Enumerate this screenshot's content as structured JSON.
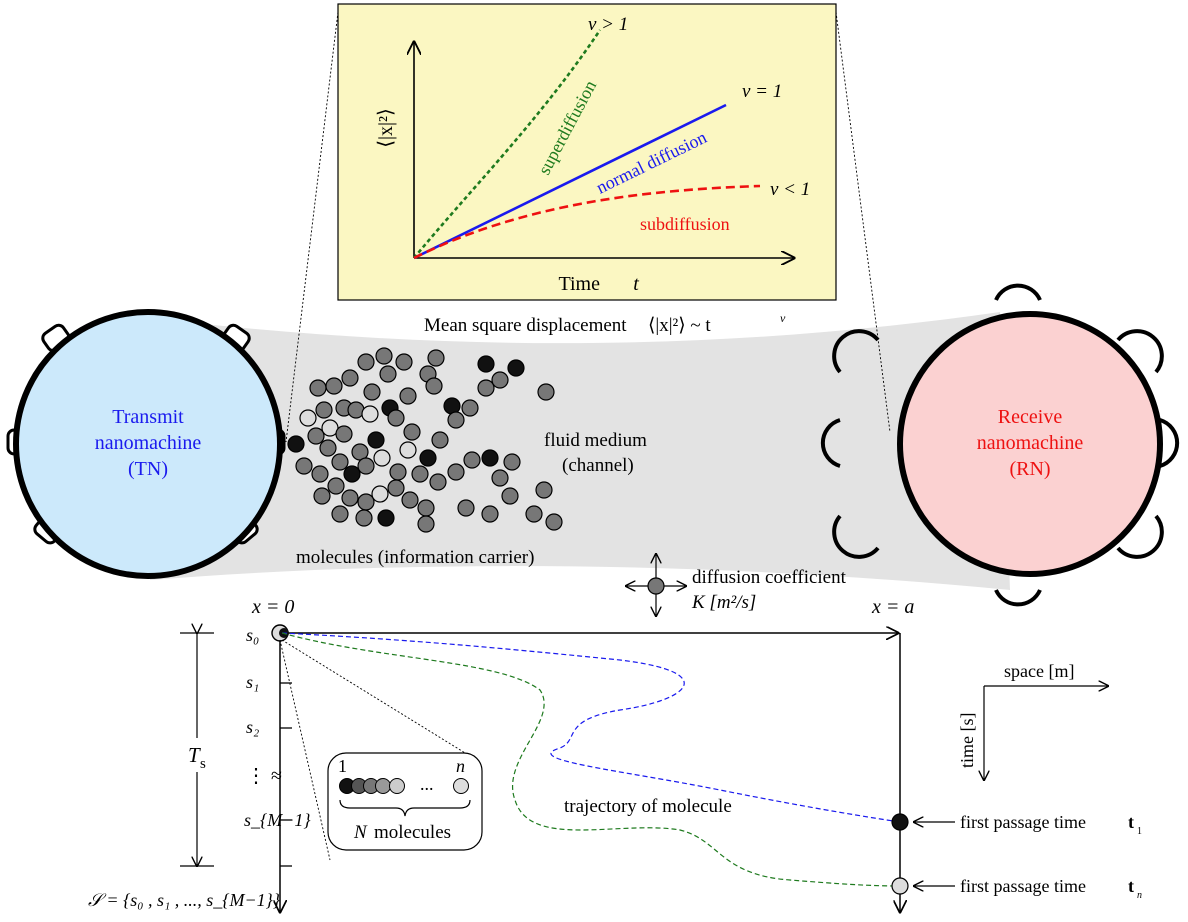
{
  "inset": {
    "y_axis_label": "⟨|x|²⟩",
    "x_axis_label": "Time",
    "x_axis_symbol": "t",
    "curves": [
      {
        "name": "superdiffusion",
        "exponent_label": "ν > 1",
        "color": "#1e7a1e"
      },
      {
        "name": "normal diffusion",
        "exponent_label": "ν = 1",
        "color": "#1a1aee"
      },
      {
        "name": "subdiffusion",
        "exponent_label": "ν < 1",
        "color": "#ee1111"
      }
    ],
    "panel_color": "#fbf7c2"
  },
  "msd_caption": {
    "text": "Mean square displacement",
    "formula": "⟨|x|²⟩ ~ t",
    "superscript": "ν"
  },
  "tn": {
    "line1": "Transmit",
    "line2": "nanomachine",
    "line3": "(TN)",
    "fill": "#cce9fb",
    "text_color": "#1a1aee"
  },
  "rn": {
    "line1": "Receive",
    "line2": "nanomachine",
    "line3": "(RN)",
    "fill": "#fbd1d1",
    "text_color": "#ee1111"
  },
  "medium": {
    "line1": "fluid medium",
    "line2": "(channel)"
  },
  "molecules_label": "molecules (information carrier)",
  "diffusion": {
    "line1": "diffusion coefficient",
    "line2": "K [m²/s]"
  },
  "axis": {
    "x0": "x = 0",
    "xa": "x = a",
    "ts": "T",
    "ts_sub": "s"
  },
  "slots": [
    "s₀",
    "s₁",
    "s₂",
    "⋮ ≈",
    "s_{M−1}"
  ],
  "set_label": "𝒮 = {s₀ , s₁ , ..., s_{M−1}}",
  "group": {
    "first": "1",
    "dots": "...",
    "last": "n",
    "count_symbol": "N",
    "count_text": "molecules"
  },
  "trajectory_label": "trajectory of molecule",
  "fpt": [
    {
      "text": "first passage time",
      "sym": "t",
      "sub": "1"
    },
    {
      "text": "first passage time",
      "sym": "t",
      "sub": "n"
    }
  ],
  "orientation": {
    "space": "space [m]",
    "time": "time [s]"
  }
}
